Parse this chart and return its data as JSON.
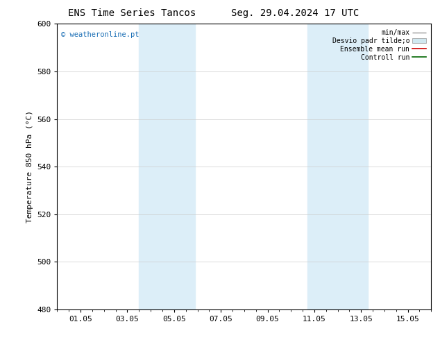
{
  "title_left": "ENS Time Series Tancos",
  "title_right": "Seg. 29.04.2024 17 UTC",
  "ylabel": "Temperature 850 hPa (°C)",
  "ylim": [
    480,
    600
  ],
  "yticks": [
    480,
    500,
    520,
    540,
    560,
    580,
    600
  ],
  "xlim_start": 0,
  "xlim_end": 16,
  "xtick_positions": [
    1,
    3,
    5,
    7,
    9,
    11,
    13,
    15
  ],
  "xtick_labels": [
    "01.05",
    "03.05",
    "05.05",
    "07.05",
    "09.05",
    "11.05",
    "13.05",
    "15.05"
  ],
  "shaded_bands": [
    {
      "xstart": 3.5,
      "xend": 5.9
    },
    {
      "xstart": 10.7,
      "xend": 13.3
    }
  ],
  "band_color": "#dceef8",
  "watermark": "© weatheronline.pt",
  "watermark_color": "#1a6eb5",
  "legend_items": [
    "min/max",
    "Desvio padr tilde;o",
    "Ensemble mean run",
    "Controll run"
  ],
  "bg_color": "#ffffff",
  "grid_color": "#cccccc",
  "title_fontsize": 10,
  "axis_fontsize": 8,
  "tick_fontsize": 8,
  "legend_fontsize": 7
}
